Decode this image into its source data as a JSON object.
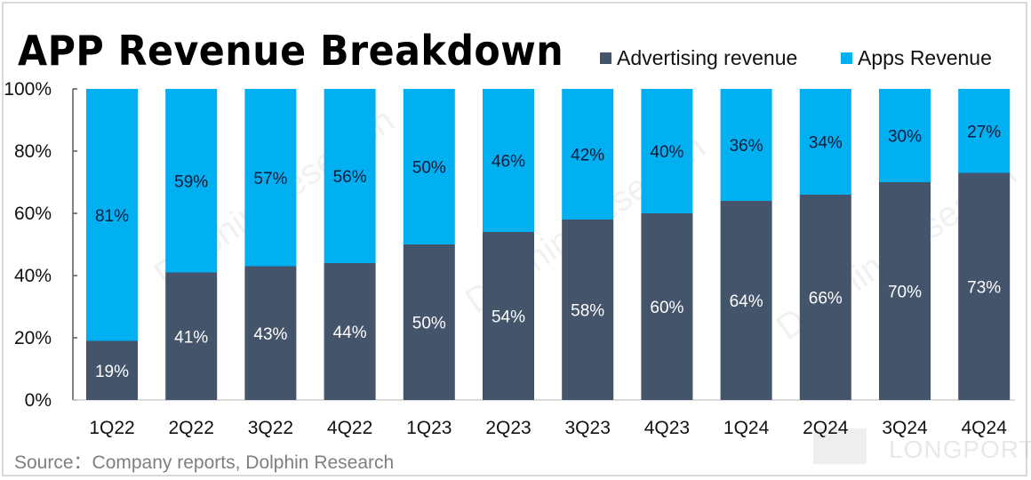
{
  "title": "APP Revenue Breakdown",
  "source": "Source：Company reports, Dolphin Research",
  "watermark": {
    "text": "Dolphin Research",
    "brand": "LONGPORT"
  },
  "legend": [
    {
      "label": "Advertising revenue",
      "color": "#44546a"
    },
    {
      "label": "Apps Revenue",
      "color": "#00b0f0"
    }
  ],
  "chart_data": {
    "type": "bar",
    "stacked": true,
    "title": "APP Revenue Breakdown",
    "xlabel": "",
    "ylabel": "",
    "ylim": [
      0,
      100
    ],
    "yticks": [
      "0%",
      "20%",
      "40%",
      "60%",
      "80%",
      "100%"
    ],
    "grid": false,
    "legend_position": "top-right",
    "categories": [
      "1Q22",
      "2Q22",
      "3Q22",
      "4Q22",
      "1Q23",
      "2Q23",
      "3Q23",
      "4Q23",
      "1Q24",
      "2Q24",
      "3Q24",
      "4Q24"
    ],
    "series": [
      {
        "name": "Advertising revenue",
        "color": "#44546a",
        "label_color": "#ffffff",
        "values": [
          19,
          41,
          43,
          44,
          50,
          54,
          58,
          60,
          64,
          66,
          70,
          73
        ]
      },
      {
        "name": "Apps Revenue",
        "color": "#00b0f0",
        "label_color": "#0d1b3a",
        "values": [
          81,
          59,
          57,
          56,
          50,
          46,
          42,
          40,
          36,
          34,
          30,
          27
        ]
      }
    ]
  }
}
